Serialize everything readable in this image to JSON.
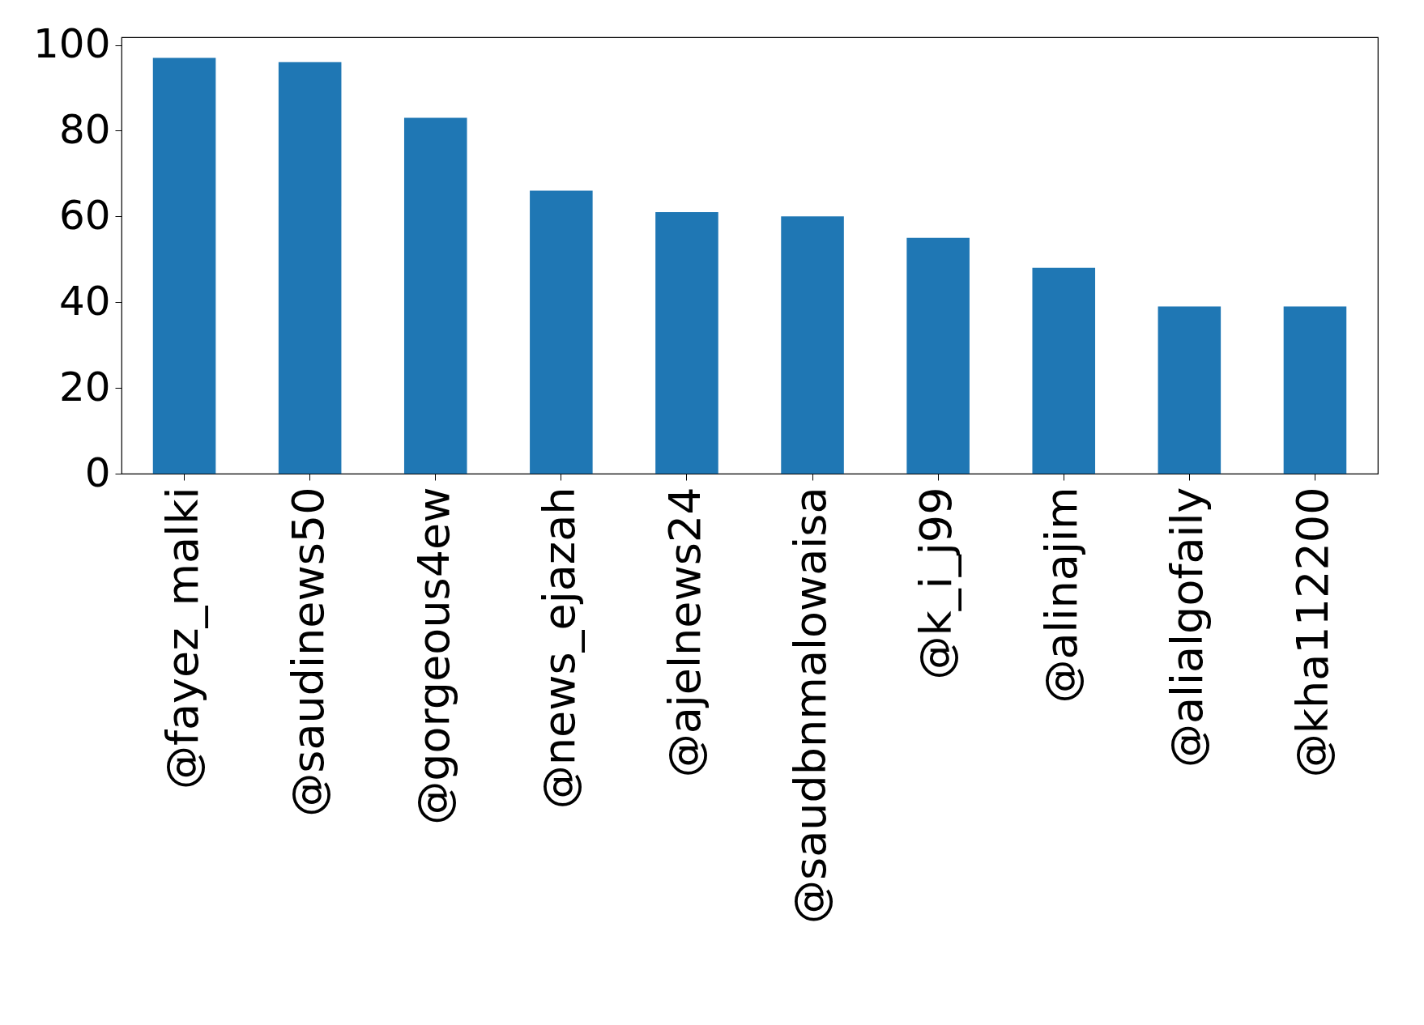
{
  "chart_data": {
    "type": "bar",
    "categories": [
      "@fayez_malki",
      "@saudinews50",
      "@gorgeous4ew",
      "@news_ejazah",
      "@ajelnews24",
      "@saudbnmalowaisa",
      "@k_i_j99",
      "@alinajim",
      "@alialgofaily",
      "@kha112200"
    ],
    "values": [
      97,
      96,
      83,
      66,
      61,
      60,
      55,
      48,
      39,
      39
    ],
    "color": "#1f77b4",
    "ylim": [
      0,
      101.8
    ],
    "yticks": [
      0,
      20,
      40,
      60,
      80,
      100
    ],
    "grid": false
  }
}
